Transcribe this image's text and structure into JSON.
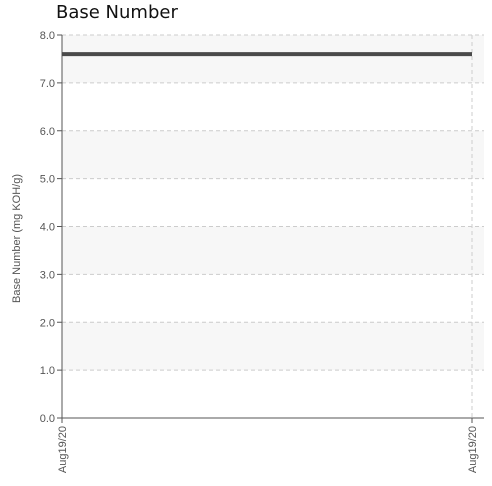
{
  "chart_data": {
    "type": "line",
    "title": "Base Number",
    "xlabel": "",
    "ylabel": "Base Number (mg KOH/g)",
    "categories": [
      "Aug19/20",
      "Aug19/20"
    ],
    "series": [
      {
        "values": [
          7.6,
          7.6
        ],
        "color": "#4a4a4a"
      }
    ],
    "ylim": [
      0.0,
      8.0
    ],
    "yticks": [
      "0.0",
      "1.0",
      "2.0",
      "3.0",
      "4.0",
      "5.0",
      "6.0",
      "7.0",
      "8.0"
    ],
    "xticks": [
      "Aug19/20",
      "Aug19/20"
    ],
    "grid": true,
    "alternating_bands": true,
    "colors": {
      "band": "#f7f7f7",
      "grid": "#cccccc",
      "axis": "#555555",
      "line": "#4a4a4a"
    }
  }
}
